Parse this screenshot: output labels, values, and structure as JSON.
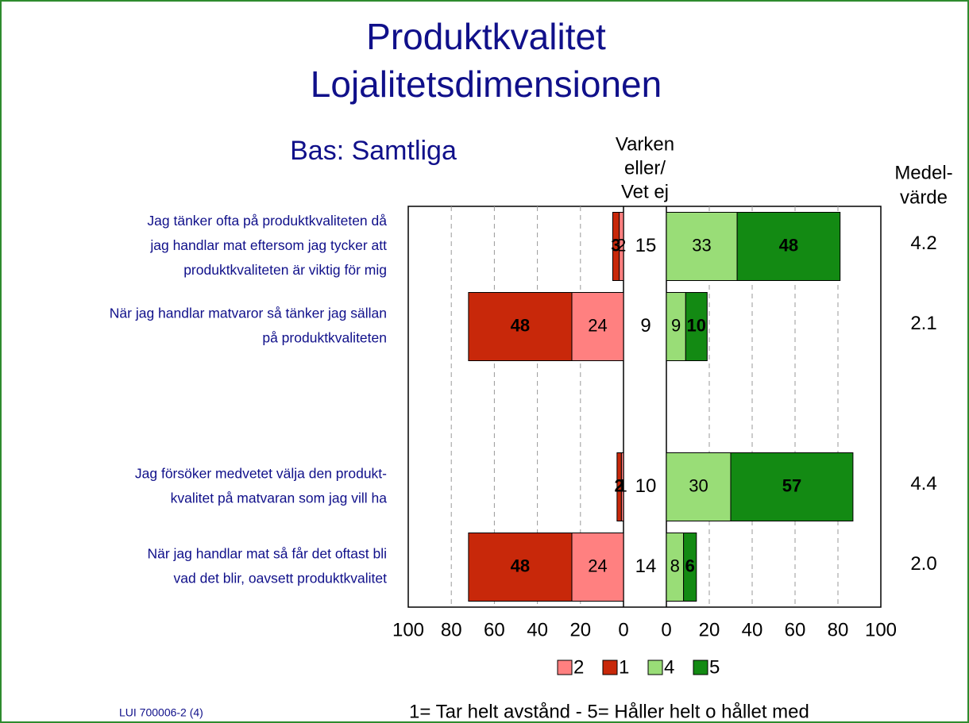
{
  "title": [
    "Produktkvalitet",
    "Lojalitetsdimensionen"
  ],
  "subtitle": "Bas: Samtliga",
  "chart_data": {
    "type": "diverging-bar",
    "categories": [
      [
        "Jag tänker ofta på produktkvaliteten då",
        "jag handlar mat eftersom jag tycker att",
        "produktkvaliteten är viktig för mig"
      ],
      [
        "När jag handlar matvaror så tänker jag sällan",
        "på produktkvaliteten"
      ],
      null,
      [
        "Jag försöker medvetet välja den produkt-",
        "kvalitet på matvaran som jag vill ha"
      ],
      [
        "När jag handlar mat så får det oftast bli",
        "vad det blir, oavsett produktkvalitet"
      ]
    ],
    "series": [
      {
        "name": "2",
        "color": "#ff8080",
        "values": [
          2,
          24,
          null,
          1,
          24
        ]
      },
      {
        "name": "1",
        "color": "#c8280a",
        "values": [
          3,
          48,
          null,
          2,
          48
        ]
      },
      {
        "name": "4",
        "color": "#99dd77",
        "values": [
          33,
          9,
          null,
          30,
          8
        ]
      },
      {
        "name": "5",
        "color": "#138a13",
        "values": [
          48,
          10,
          null,
          57,
          6
        ]
      }
    ],
    "neutral": {
      "name": [
        "Varken",
        "eller/",
        "Vet ej"
      ],
      "values": [
        15,
        9,
        null,
        10,
        14
      ]
    },
    "mean": {
      "name": [
        "Medel-",
        "värde"
      ],
      "values": [
        4.2,
        2.1,
        null,
        4.4,
        2.0
      ],
      "value_labels": [
        "4.2",
        "2.1",
        null,
        "4.4",
        "2.0"
      ]
    },
    "xlim": [
      0,
      100
    ],
    "xticks": [
      0,
      20,
      40,
      60,
      80,
      100
    ],
    "grid": true,
    "scale_note": "1= Tar helt avstånd - 5= Håller helt o hållet med"
  },
  "footer": "LUI 700006-2 (4)"
}
